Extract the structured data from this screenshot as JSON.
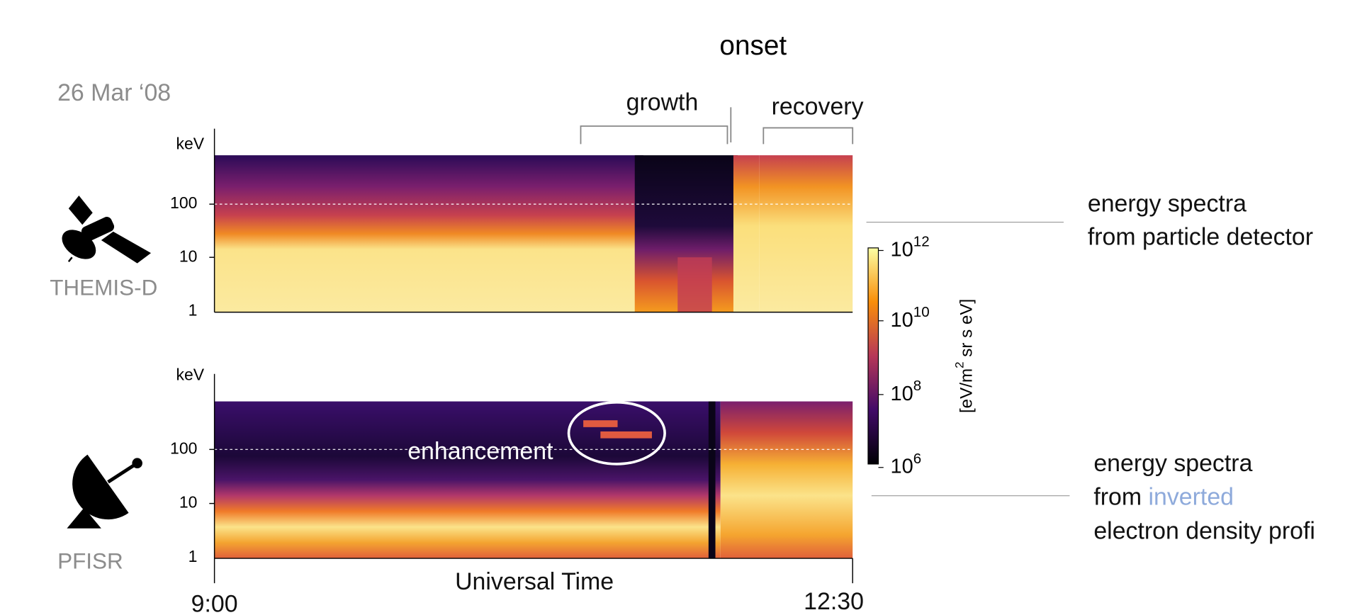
{
  "title": "onset",
  "date": "26 Mar ‘08",
  "phases": [
    "growth",
    "recovery"
  ],
  "panels": [
    {
      "instrument": "THEMIS-D",
      "unit": "keV",
      "yticks": [
        "100",
        "10",
        "1"
      ],
      "description": [
        "energy spectra",
        "from particle detector"
      ]
    },
    {
      "instrument": "PFISR",
      "unit": "keV",
      "yticks": [
        "100",
        "10",
        "1"
      ],
      "annotation": "enhancement",
      "description": [
        "energy spectra",
        "from ",
        "inverted",
        "electron density profi"
      ]
    }
  ],
  "x_axis": {
    "label": "Universal Time",
    "ticks": [
      "9:00",
      "12:30"
    ]
  },
  "colorbar": {
    "label": [
      "[eV/m",
      "2",
      " sr s eV]"
    ],
    "ticks": [
      {
        "base": "10",
        "exp": "12"
      },
      {
        "base": "10",
        "exp": "10"
      },
      {
        "base": "10",
        "exp": "8"
      },
      {
        "base": "10",
        "exp": "6"
      }
    ]
  }
}
